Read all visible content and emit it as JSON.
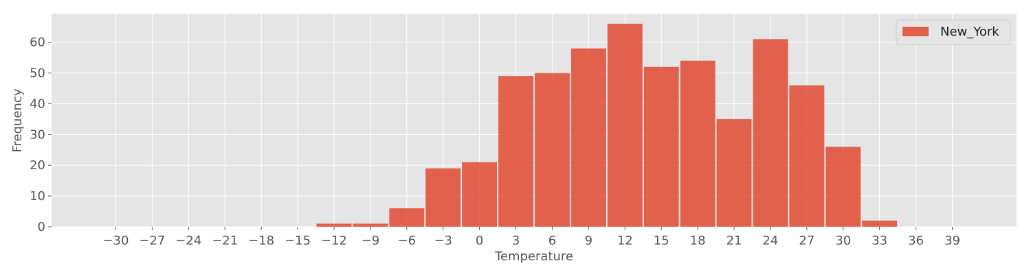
{
  "chart_data": {
    "type": "bar",
    "title": "",
    "xlabel": "Temperature",
    "ylabel": "Frequency",
    "xlim": [
      -35.3,
      44.3
    ],
    "ylim": [
      0,
      69.3
    ],
    "grid": true,
    "legend_position": "top-right",
    "bin_width": 3,
    "x_ticks": [
      -30,
      -27,
      -24,
      -21,
      -18,
      -15,
      -12,
      -9,
      -6,
      -3,
      0,
      3,
      6,
      9,
      12,
      15,
      18,
      21,
      24,
      27,
      30,
      33,
      36,
      39
    ],
    "x_tick_labels": [
      "−30",
      "−27",
      "−24",
      "−21",
      "−18",
      "−15",
      "−12",
      "−9",
      "−6",
      "−3",
      "0",
      "3",
      "6",
      "9",
      "12",
      "15",
      "18",
      "21",
      "24",
      "27",
      "30",
      "33",
      "36",
      "39"
    ],
    "y_ticks": [
      0,
      10,
      20,
      30,
      40,
      50,
      60
    ],
    "y_tick_labels": [
      "0",
      "10",
      "20",
      "30",
      "40",
      "50",
      "60"
    ],
    "series": [
      {
        "name": "New_York",
        "color": "#e24a33",
        "bin_centers": [
          -12,
          -9,
          -6,
          -3,
          0,
          3,
          6,
          9,
          12,
          15,
          18,
          21,
          24,
          27,
          30,
          33
        ],
        "values": [
          1,
          1,
          6,
          19,
          21,
          49,
          50,
          58,
          66,
          52,
          54,
          35,
          61,
          46,
          26,
          2
        ]
      }
    ]
  },
  "colors": {
    "plot_background": "#e5e5e5",
    "grid": "#ffffff",
    "bar": "#e24a33",
    "axis_text": "#555555"
  }
}
